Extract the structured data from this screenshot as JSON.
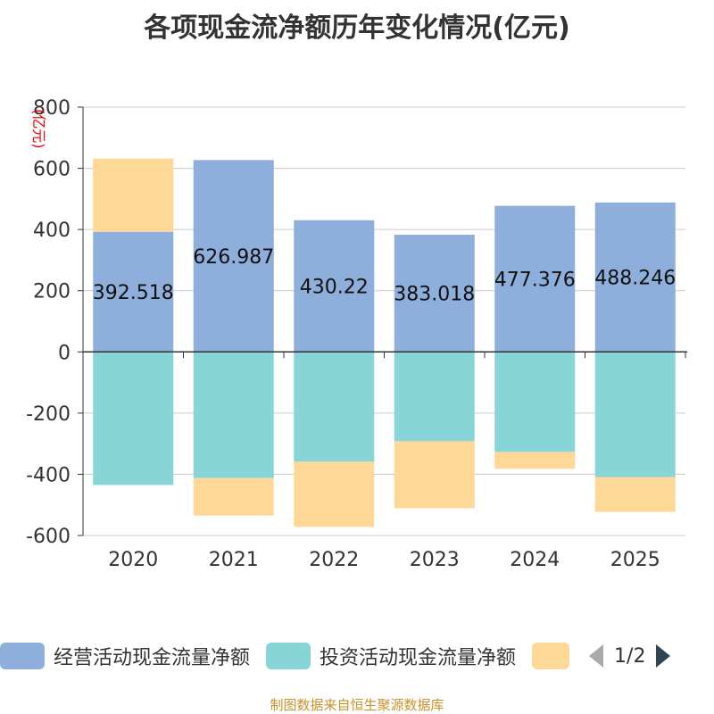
{
  "chart_data": {
    "type": "bar",
    "stacked": true,
    "title": "各项现金流净额历年变化情况(亿元)",
    "ylabel": "(亿元)",
    "xlabel": "",
    "ylim": [
      -600,
      800
    ],
    "yticks": [
      -600,
      -400,
      -200,
      0,
      200,
      400,
      600,
      800
    ],
    "categories": [
      "2020",
      "2021",
      "2022",
      "2023",
      "2024",
      "2025"
    ],
    "series": [
      {
        "name": "经营活动现金流量净额",
        "color": "#8eaedb",
        "values": [
          392.518,
          626.987,
          430.22,
          383.018,
          477.376,
          488.246
        ],
        "labels": [
          "392.518",
          "626.987",
          "430.22",
          "383.018",
          "477.376",
          "488.246"
        ]
      },
      {
        "name": "投资活动现金流量净额",
        "color": "#88d5d8",
        "values": [
          -435,
          -412,
          -359,
          -292,
          -327,
          -409
        ]
      },
      {
        "name": "",
        "color": "#fed897",
        "values": [
          239,
          -123,
          -213,
          -219,
          -55,
          -114
        ]
      }
    ],
    "legend": "bottom",
    "grid": true
  },
  "legend_pager": "1/2",
  "source": "制图数据来自恒生聚源数据库"
}
